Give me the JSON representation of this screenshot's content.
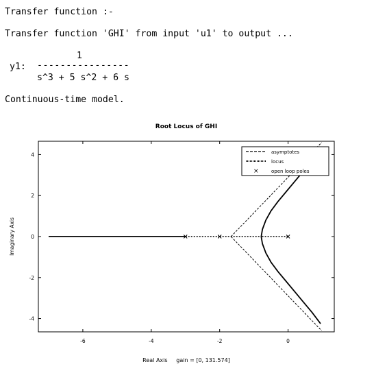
{
  "console": {
    "line1": "Transfer function :-",
    "line2": "Transfer function 'GHI' from input 'u1' to output ...",
    "output_label": "y1:",
    "numerator": "1",
    "fraction_bar": "----------------",
    "denominator": "s^3 + 5 s^2 + 6 s",
    "model_note": "Continuous-time model."
  },
  "chart_data": {
    "type": "line",
    "title": "Root Locus of GHI",
    "xlabel": "Real Axis     gain = [0, 131.574]",
    "ylabel": "Imaginary Axis",
    "xlim": [
      -7.3,
      1.35
    ],
    "ylim": [
      -4.65,
      4.65
    ],
    "x_ticks": [
      -6,
      -4,
      -2,
      0
    ],
    "x_tick_labels": [
      "-6",
      "-4",
      "-2",
      "0"
    ],
    "y_ticks": [
      -4,
      -2,
      0,
      2,
      4
    ],
    "y_tick_labels": [
      "-4",
      "-2",
      "0",
      "2",
      "4"
    ],
    "legend_position": "top-right",
    "legend": [
      "asymptotes",
      "locus",
      "open loop poles"
    ],
    "series": [
      {
        "name": "asymptotes",
        "style": "dashed",
        "points": [
          [
            -1.667,
            0
          ],
          [
            0.98,
            4.59
          ]
        ]
      },
      {
        "name": "asymptotes",
        "style": "dashed",
        "points": [
          [
            -1.667,
            0
          ],
          [
            0.98,
            -4.59
          ]
        ]
      },
      {
        "name": "locus",
        "style": "solid",
        "points": [
          [
            -7.0,
            0
          ],
          [
            -3.0,
            0
          ]
        ]
      },
      {
        "name": "locus",
        "style": "dotted",
        "points": [
          [
            -3.0,
            0
          ],
          [
            -2.0,
            0
          ]
        ]
      },
      {
        "name": "locus",
        "style": "dotted",
        "points": [
          [
            -2.0,
            0
          ],
          [
            -0.785,
            0
          ]
        ]
      },
      {
        "name": "locus",
        "style": "dotted",
        "points": [
          [
            0,
            0
          ],
          [
            -0.785,
            0
          ]
        ]
      },
      {
        "name": "locus",
        "style": "solid",
        "points": [
          [
            -0.785,
            0
          ],
          [
            -0.75,
            0.35
          ],
          [
            -0.65,
            0.8
          ],
          [
            -0.5,
            1.25
          ],
          [
            -0.3,
            1.7
          ],
          [
            -0.05,
            2.2
          ],
          [
            0.2,
            2.7
          ],
          [
            0.45,
            3.2
          ],
          [
            0.7,
            3.7
          ],
          [
            0.95,
            4.25
          ]
        ]
      },
      {
        "name": "locus",
        "style": "solid",
        "points": [
          [
            -0.785,
            0
          ],
          [
            -0.75,
            -0.35
          ],
          [
            -0.65,
            -0.8
          ],
          [
            -0.5,
            -1.25
          ],
          [
            -0.3,
            -1.7
          ],
          [
            -0.05,
            -2.2
          ],
          [
            0.2,
            -2.7
          ],
          [
            0.45,
            -3.2
          ],
          [
            0.7,
            -3.7
          ],
          [
            0.95,
            -4.25
          ]
        ]
      },
      {
        "name": "open loop poles",
        "style": "marker-x",
        "points": [
          [
            0,
            0
          ],
          [
            -2,
            0
          ],
          [
            -3,
            0
          ]
        ]
      }
    ]
  }
}
